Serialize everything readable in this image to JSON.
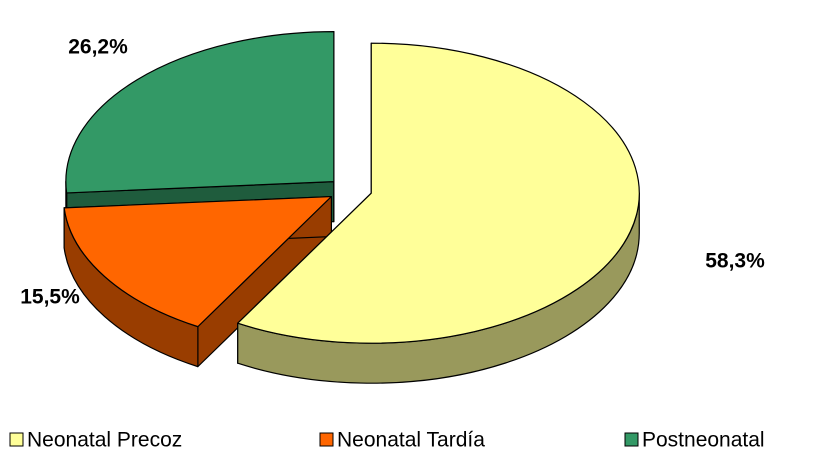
{
  "chart_data": {
    "type": "pie",
    "categories": [
      "Neonatal Precoz",
      "Neonatal Tardía",
      "Postneonatal"
    ],
    "values": [
      58.3,
      15.5,
      26.2
    ],
    "value_labels": [
      "58,3%",
      "15,5%",
      "26,2%"
    ],
    "colors": [
      "#ffff99",
      "#ff6600",
      "#339966"
    ],
    "legend": "bottom"
  }
}
